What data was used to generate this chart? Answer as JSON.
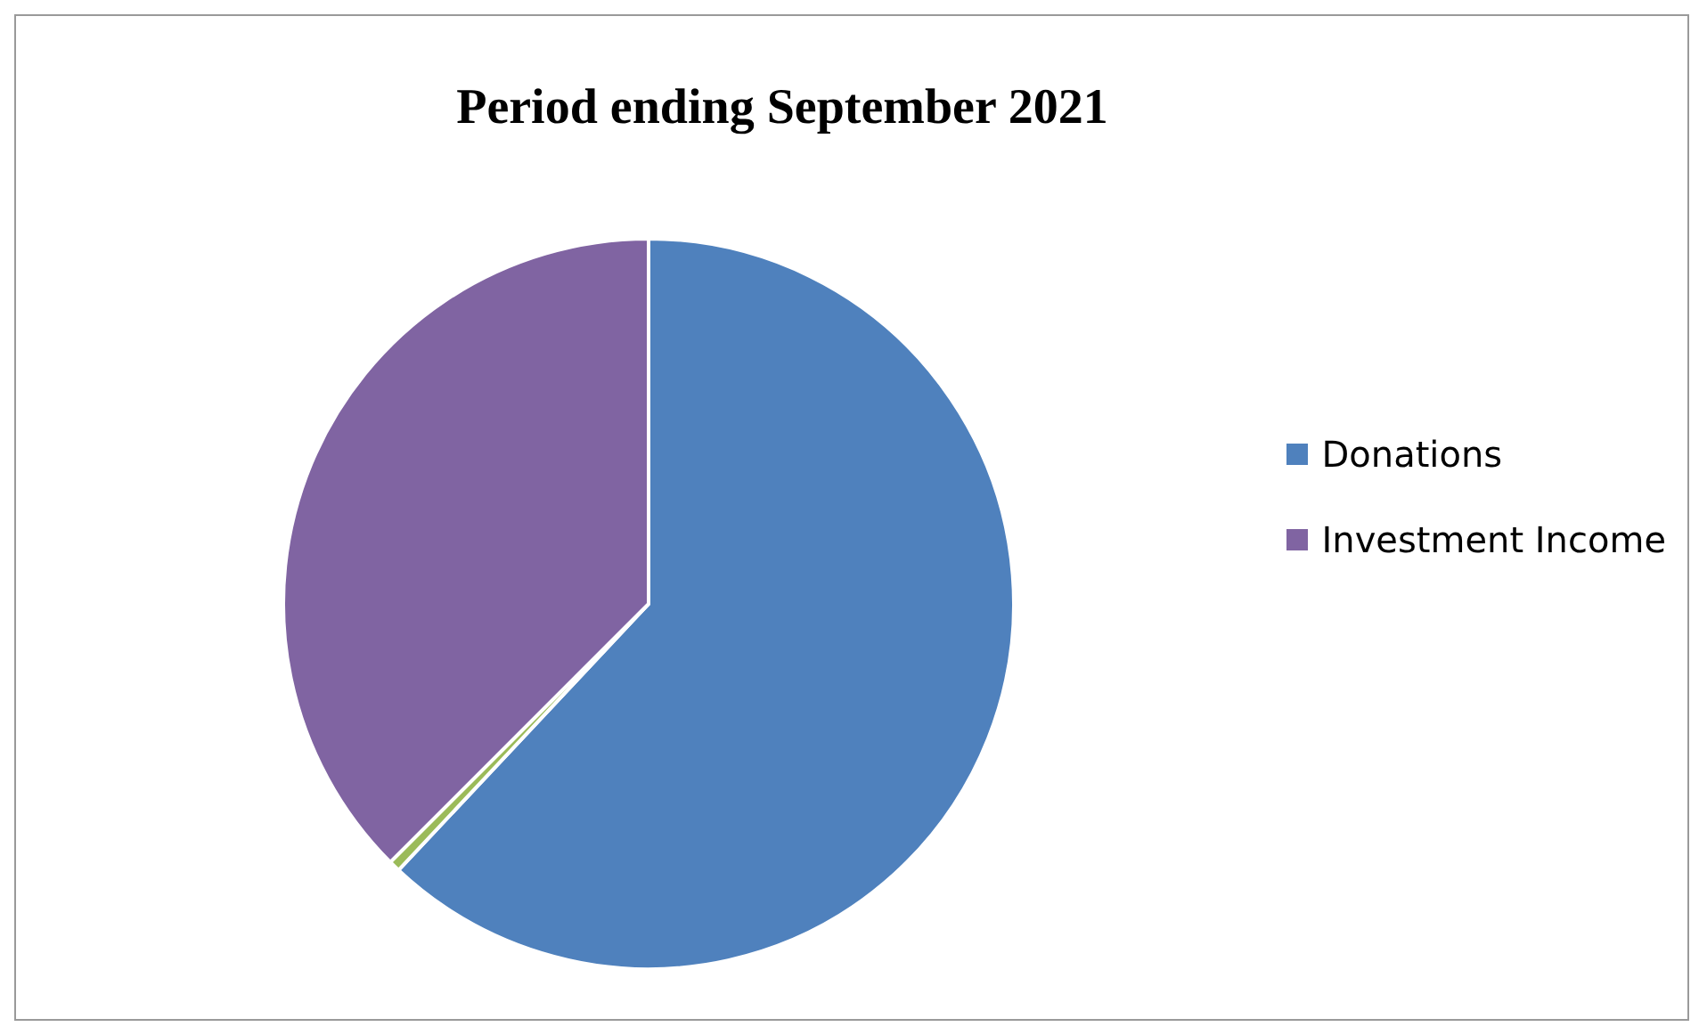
{
  "chart_data": {
    "type": "pie",
    "title": "Period ending September 2021",
    "categories": [
      "Donations",
      null,
      "Investment Income"
    ],
    "values": [
      62,
      0.5,
      37.5
    ],
    "colors": [
      "#4f81bd",
      "#9bbb59",
      "#8064a2"
    ],
    "legend": "right"
  }
}
